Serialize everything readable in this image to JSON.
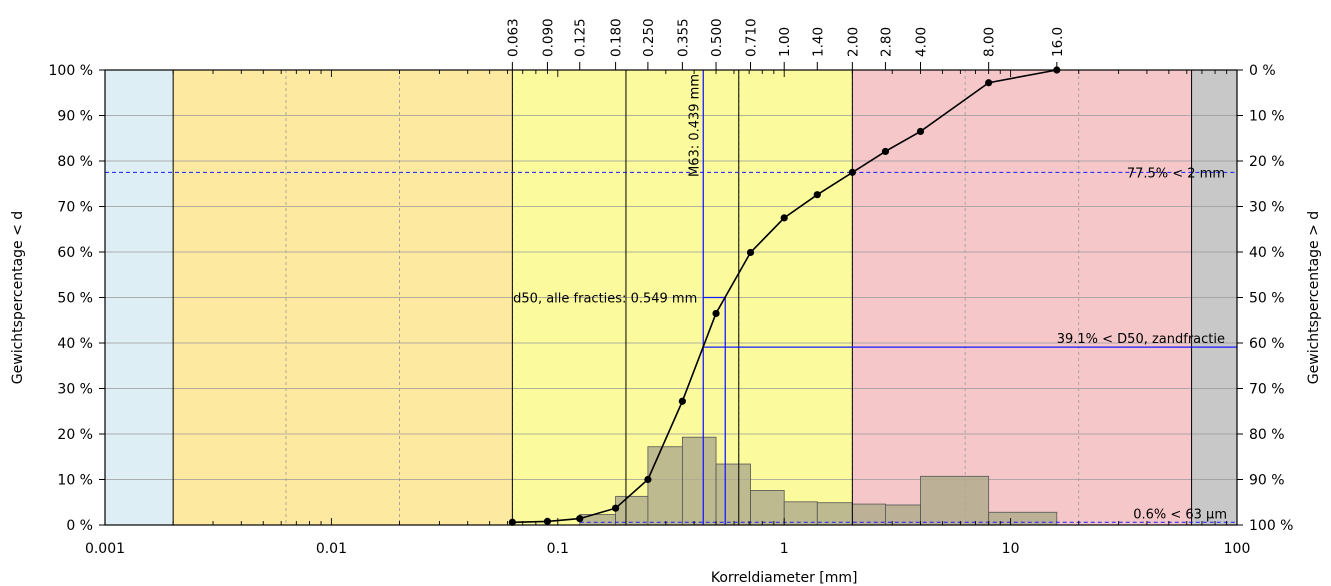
{
  "colors": {
    "clay": "#ddeef5",
    "silt": "#fdeaa0",
    "sand": "#fbfb9d",
    "gravel": "#f5c7c9",
    "stones": "#c8c8c8",
    "bars": "#b0ab8c",
    "curve": "#000000",
    "blue": "#1a1aff",
    "grid": "#9a9a9a"
  },
  "chart_data": {
    "type": "line",
    "xscale": "log",
    "xlim": [
      0.001,
      100
    ],
    "ylim": [
      0,
      100
    ],
    "xlabel": "Korreldiameter [mm]",
    "ylabel_left": "Gewichtspercentage < d",
    "ylabel_right": "Gewichtspercentage > d",
    "x_ticks": [
      "0.001",
      "0.01",
      "0.1",
      "1",
      "10",
      "100"
    ],
    "y_ticks_left": [
      "0 %",
      "10 %",
      "20 %",
      "30 %",
      "40 %",
      "50 %",
      "60 %",
      "70 %",
      "80 %",
      "90 %",
      "100 %"
    ],
    "y_ticks_right": [
      "100 %",
      "90 %",
      "80 %",
      "70 %",
      "60 %",
      "50 %",
      "40 %",
      "30 %",
      "20 %",
      "10 %",
      "0 %"
    ],
    "sieve_labels": [
      "0.063",
      "0.090",
      "0.125",
      "0.180",
      "0.250",
      "0.355",
      "0.500",
      "0.710",
      "1.00",
      "1.40",
      "2.00",
      "2.80",
      "4.00",
      "8.00",
      "16.0"
    ],
    "sieve_values": [
      0.063,
      0.09,
      0.125,
      0.18,
      0.25,
      0.355,
      0.5,
      0.71,
      1.0,
      1.4,
      2.0,
      2.8,
      4.0,
      8.0,
      16.0
    ],
    "zones": [
      {
        "from": 0.001,
        "to": 0.002,
        "color_key": "clay"
      },
      {
        "from": 0.002,
        "to": 0.063,
        "color_key": "silt"
      },
      {
        "from": 0.063,
        "to": 2.0,
        "color_key": "sand"
      },
      {
        "from": 2.0,
        "to": 63,
        "color_key": "gravel"
      },
      {
        "from": 63,
        "to": 100,
        "color_key": "stones"
      }
    ],
    "curve": {
      "x": [
        0.063,
        0.09,
        0.125,
        0.18,
        0.25,
        0.355,
        0.5,
        0.71,
        1.0,
        1.4,
        2.0,
        2.8,
        4.0,
        8.0,
        16.0
      ],
      "y": [
        0.6,
        0.8,
        1.4,
        3.7,
        10.0,
        27.2,
        46.5,
        59.9,
        67.5,
        72.6,
        77.5,
        82.1,
        86.5,
        97.2,
        100.0
      ]
    },
    "bars": [
      {
        "from": 0.125,
        "to": 0.18,
        "value": 2.3
      },
      {
        "from": 0.18,
        "to": 0.25,
        "value": 6.3
      },
      {
        "from": 0.25,
        "to": 0.355,
        "value": 17.2
      },
      {
        "from": 0.355,
        "to": 0.5,
        "value": 19.3
      },
      {
        "from": 0.5,
        "to": 0.71,
        "value": 13.4
      },
      {
        "from": 0.71,
        "to": 1.0,
        "value": 7.6
      },
      {
        "from": 1.0,
        "to": 1.4,
        "value": 5.1
      },
      {
        "from": 1.4,
        "to": 2.0,
        "value": 4.9
      },
      {
        "from": 2.0,
        "to": 2.8,
        "value": 4.6
      },
      {
        "from": 2.8,
        "to": 4.0,
        "value": 4.4
      },
      {
        "from": 4.0,
        "to": 8.0,
        "value": 10.7
      },
      {
        "from": 8.0,
        "to": 16.0,
        "value": 2.8
      }
    ],
    "fraction_lines_x": [
      0.2,
      0.63
    ],
    "grid": true,
    "annotations": {
      "m63": {
        "label": "M63: 0.439 mm",
        "x": 0.439
      },
      "d50": {
        "label": "d50, alle fracties: 0.549 mm",
        "x": 0.549,
        "y": 50
      },
      "pct_2mm": {
        "label": "77.5% < 2 mm",
        "y": 77.5
      },
      "d50_sand": {
        "label": "39.1% < D50, zandfractie",
        "y": 39.1,
        "x_from": 0.439
      },
      "fines": {
        "label": "0.6% < 63 μm",
        "y": 0.6
      }
    }
  }
}
